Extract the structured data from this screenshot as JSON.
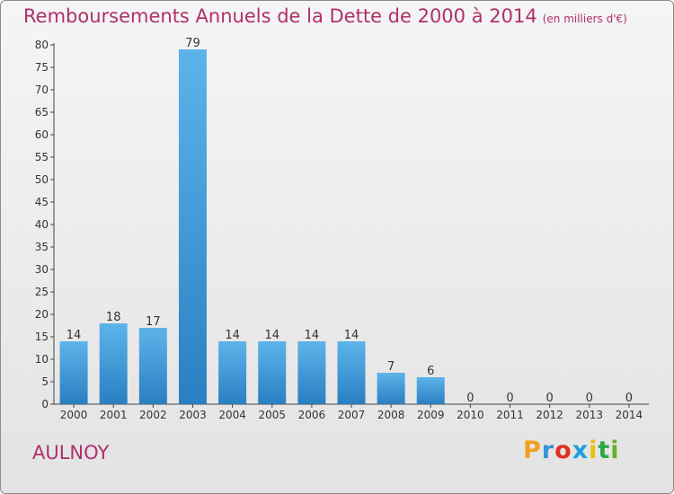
{
  "title": "Remboursements Annuels de la Dette de 2000 à 2014",
  "subtitle": "(en milliers d'€)",
  "commune": "AULNOY",
  "logo": {
    "letters": [
      "P",
      "r",
      "o",
      "x",
      "i",
      "t",
      "i"
    ],
    "colors": [
      "#f0a020",
      "#3a8fd8",
      "#e03020",
      "#1f9fe0",
      "#e7c012",
      "#2aa84a",
      "#6ab02a"
    ]
  },
  "colors": {
    "bar_top": "#5db4ea",
    "bar_bottom": "#2a7fc2",
    "title": "#b0306a"
  },
  "chart_data": {
    "type": "bar",
    "categories": [
      "2000",
      "2001",
      "2002",
      "2003",
      "2004",
      "2005",
      "2006",
      "2007",
      "2008",
      "2009",
      "2010",
      "2011",
      "2012",
      "2013",
      "2014"
    ],
    "values": [
      14,
      18,
      17,
      79,
      14,
      14,
      14,
      14,
      7,
      6,
      0,
      0,
      0,
      0,
      0
    ],
    "ylim": [
      0,
      80
    ],
    "yticks": [
      0,
      5,
      10,
      15,
      20,
      25,
      30,
      35,
      40,
      45,
      50,
      55,
      60,
      65,
      70,
      75,
      80
    ],
    "grid": false
  }
}
